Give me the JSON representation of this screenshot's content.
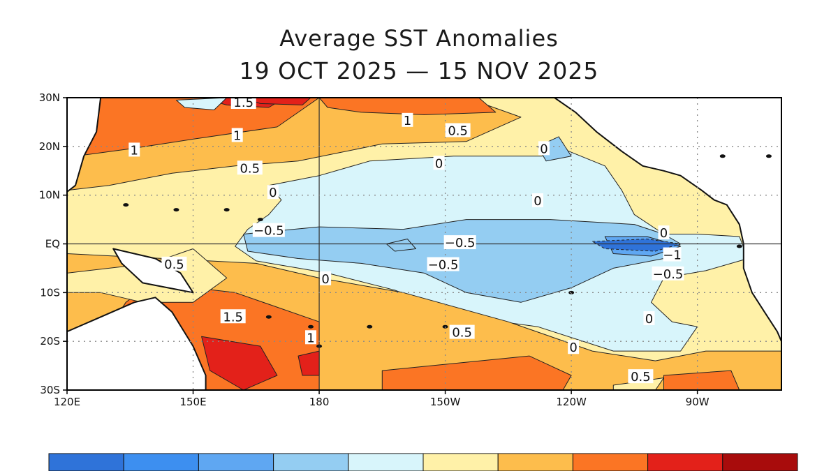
{
  "title": "Average SST Anomalies",
  "subtitle": "19 OCT 2025 — 15 NOV 2025",
  "chart_data": {
    "type": "heatmap",
    "title": "Average SST Anomalies",
    "subtitle": "19 OCT 2025 — 15 NOV 2025",
    "lon_range": [
      120,
      290
    ],
    "lat_range": [
      -30,
      30
    ],
    "x_ticks": [
      {
        "lon": 120,
        "label": "120E"
      },
      {
        "lon": 150,
        "label": "150E"
      },
      {
        "lon": 180,
        "label": "180"
      },
      {
        "lon": 210,
        "label": "150W"
      },
      {
        "lon": 240,
        "label": "120W"
      },
      {
        "lon": 270,
        "label": "90W"
      }
    ],
    "y_ticks": [
      {
        "lat": 30,
        "label": "30N"
      },
      {
        "lat": 20,
        "label": "20N"
      },
      {
        "lat": 10,
        "label": "10N"
      },
      {
        "lat": 0,
        "label": "EQ"
      },
      {
        "lat": -10,
        "label": "10S"
      },
      {
        "lat": -20,
        "label": "20S"
      },
      {
        "lat": -30,
        "label": "30S"
      }
    ],
    "contour_labels": [
      {
        "text": "1.5",
        "lon": 162,
        "lat": 29
      },
      {
        "text": "1",
        "lon": 201,
        "lat": 25.3
      },
      {
        "text": "0.5",
        "lon": 213,
        "lat": 23.2
      },
      {
        "text": "1",
        "lon": 160.5,
        "lat": 22.2
      },
      {
        "text": "1",
        "lon": 136,
        "lat": 19.2
      },
      {
        "text": "0",
        "lon": 233.5,
        "lat": 19.5
      },
      {
        "text": "0",
        "lon": 208.5,
        "lat": 16.5
      },
      {
        "text": "0.5",
        "lon": 163.5,
        "lat": 15.5
      },
      {
        "text": "0",
        "lon": 169,
        "lat": 10.5
      },
      {
        "text": "0",
        "lon": 232,
        "lat": 8.8
      },
      {
        "text": "−0.5",
        "lon": 168,
        "lat": 2.7
      },
      {
        "text": "0",
        "lon": 262,
        "lat": 2.2
      },
      {
        "text": "−0.5",
        "lon": 213.5,
        "lat": 0.2
      },
      {
        "text": "−1",
        "lon": 264,
        "lat": -2.3
      },
      {
        "text": "0.5",
        "lon": 145.5,
        "lat": -4.2
      },
      {
        "text": "−0.5",
        "lon": 209.5,
        "lat": -4.3
      },
      {
        "text": "−0.5",
        "lon": 263,
        "lat": -6.2
      },
      {
        "text": "0",
        "lon": 181.5,
        "lat": -7.2
      },
      {
        "text": "1.5",
        "lon": 159.5,
        "lat": -15
      },
      {
        "text": "0",
        "lon": 258.5,
        "lat": -15.4
      },
      {
        "text": "1",
        "lon": 178,
        "lat": -19.3
      },
      {
        "text": "0.5",
        "lon": 214,
        "lat": -18.2
      },
      {
        "text": "0",
        "lon": 240.5,
        "lat": -21.3
      },
      {
        "text": "0.5",
        "lon": 256.5,
        "lat": -27.3
      }
    ],
    "colorbar": {
      "colors": [
        "#2f73d9",
        "#3d8ff0",
        "#5fa7f2",
        "#94cdf2",
        "#d8f5fb",
        "#fff1a8",
        "#fdbd4c",
        "#fb7524",
        "#e3211a",
        "#a80c0c"
      ]
    },
    "colors": {
      "land": "#ffffff",
      "coast": "#111111",
      "frame": "#000000"
    }
  }
}
